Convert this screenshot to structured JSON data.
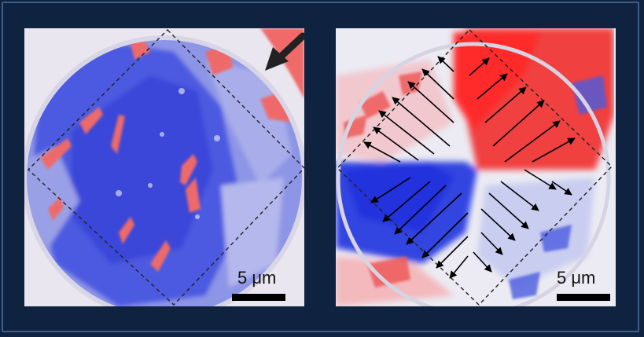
{
  "figure": {
    "left_panel": {
      "scale_label": "5 μm",
      "description_icon": "arrow-icon"
    },
    "right_panel": {
      "scale_label": "5 μm",
      "description_icon": "arrows-field-icon"
    },
    "colors": {
      "background": "#0f2340",
      "frame_border": "#3d5f86",
      "blue_domain": "#3a4fe0",
      "red_domain": "#f03a3a",
      "white": "#ffffff"
    }
  }
}
